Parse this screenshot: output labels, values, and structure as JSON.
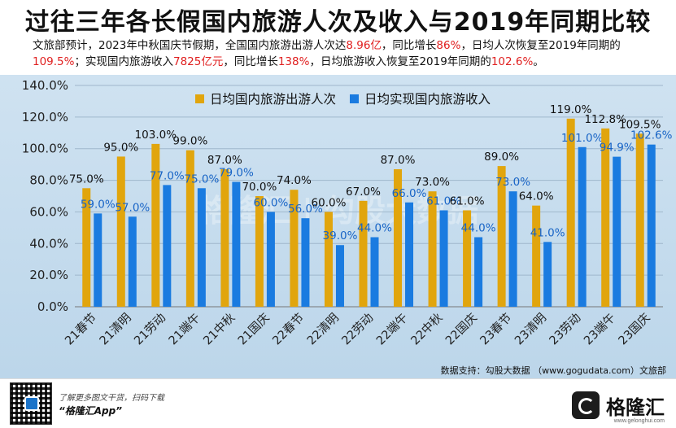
{
  "header": {
    "title": "过往三年各长假国内旅游人次及收入与2019年同期比较",
    "subtitle_parts": [
      {
        "text": "文旅部预计，2023年中秋国庆节假期，全国国内旅游出游人次达",
        "hl": false
      },
      {
        "text": "8.96亿",
        "hl": true
      },
      {
        "text": "，同比增长",
        "hl": false
      },
      {
        "text": "86%",
        "hl": true
      },
      {
        "text": "，日均人次恢复至2019年同期的",
        "hl": false
      },
      {
        "text": "109.5%",
        "hl": true
      },
      {
        "text": "；实现国内旅游收入",
        "hl": false
      },
      {
        "text": "7825亿元",
        "hl": true
      },
      {
        "text": "，同比增长",
        "hl": false
      },
      {
        "text": "138%",
        "hl": true
      },
      {
        "text": "，日均旅游收入恢复至2019年同期的",
        "hl": false
      },
      {
        "text": "102.6%",
        "hl": true
      },
      {
        "text": "。",
        "hl": false
      }
    ]
  },
  "chart_data": {
    "type": "bar",
    "categories": [
      "21春节",
      "21清明",
      "21劳动",
      "21端午",
      "21中秋",
      "21国庆",
      "22春节",
      "22清明",
      "22劳动",
      "22端午",
      "22中秋",
      "22国庆",
      "23春节",
      "23清明",
      "23劳动",
      "23端午",
      "23国庆"
    ],
    "series": [
      {
        "name": "日均国内旅游出游人次",
        "values": [
          75.0,
          95.0,
          103.0,
          99.0,
          87.0,
          70.0,
          74.0,
          60.0,
          67.0,
          87.0,
          73.0,
          61.0,
          89.0,
          64.0,
          119.0,
          112.8,
          109.5
        ]
      },
      {
        "name": "日均实现国内旅游收入",
        "values": [
          59.0,
          57.0,
          77.0,
          75.0,
          79.0,
          60.0,
          56.0,
          39.0,
          44.0,
          66.0,
          61.0,
          44.0,
          73.0,
          41.0,
          101.0,
          94.9,
          102.6
        ]
      }
    ],
    "ylim": [
      0,
      140
    ],
    "yticks": [
      "0.0%",
      "20.0%",
      "40.0%",
      "60.0%",
      "80.0%",
      "100.0%",
      "120.0%",
      "140.0%"
    ],
    "grid": true,
    "legend_position": "top"
  },
  "colors": {
    "series1": "#e1a50d",
    "series2": "#1a7be0",
    "label1": "#111111",
    "label2": "#1864c6"
  },
  "watermark": {
    "text": "格隆汇 | 勾股大数据"
  },
  "source": "数据支持：勾股大数据 （www.gogudata.com）文旅部",
  "footer": {
    "line1": "了解更多图文干货，扫码下载",
    "line2": "“格隆汇App”",
    "brand_name": "格隆汇",
    "brand_url": "www.gelonghui.com"
  }
}
